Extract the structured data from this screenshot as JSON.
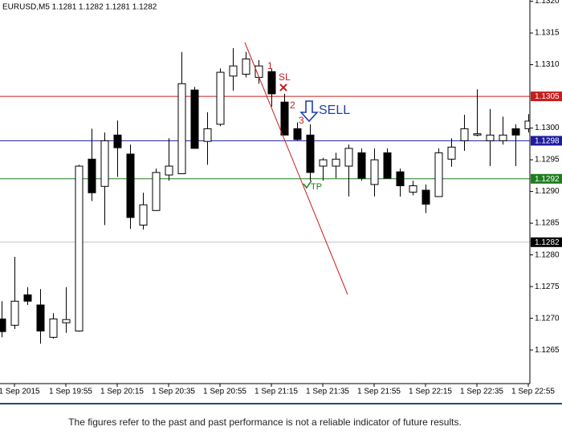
{
  "chart_data": {
    "type": "candlestick",
    "title": "EURUSD,M5  1.1281 1.1282 1.1281 1.1282",
    "categories": [
      null,
      "1 Sep 2015",
      null,
      null,
      null,
      "1 Sep 19:55",
      null,
      null,
      null,
      "1 Sep 20:15",
      null,
      null,
      null,
      "1 Sep 20:35",
      null,
      null,
      null,
      "1 Sep 20:55",
      null,
      null,
      null,
      "1 Sep 21:15",
      null,
      null,
      null,
      "1 Sep 21:35",
      null,
      null,
      null,
      "1 Sep 21:55",
      null,
      null,
      null,
      "1 Sep 22:15",
      null,
      null,
      null,
      "1 Sep 22:35",
      null,
      null,
      null,
      "1 Sep 22:55"
    ],
    "open": [
      1.12699,
      1.12689,
      1.12737,
      1.12721,
      1.1267,
      1.12693,
      1.1268,
      1.12951,
      1.12908,
      1.12989,
      1.12959,
      1.12847,
      1.1287,
      1.12926,
      1.12928,
      1.1306,
      1.12979,
      1.13006,
      1.13082,
      1.13085,
      1.1308,
      1.13089,
      1.13041,
      1.12999,
      1.12989,
      1.1294,
      1.1294,
      1.1294,
      1.12961,
      1.12911,
      1.12961,
      1.12931,
      1.12899,
      1.12902,
      1.12892,
      1.12951,
      1.1298,
      1.12989,
      1.1298,
      1.1298,
      1.12999,
      1.12999
    ],
    "high": [
      1.12727,
      1.12797,
      1.12749,
      1.12746,
      1.12708,
      1.12749,
      1.12942,
      1.12999,
      1.12993,
      1.13012,
      1.12974,
      1.12898,
      1.12936,
      1.12984,
      1.1312,
      1.13065,
      1.13025,
      1.13094,
      1.13126,
      1.1312,
      1.13107,
      1.13094,
      1.13054,
      1.13009,
      1.13006,
      1.12953,
      1.12961,
      1.12974,
      1.12968,
      1.12968,
      1.12968,
      1.12936,
      1.12917,
      1.12911,
      1.12968,
      1.12984,
      1.13021,
      1.13061,
      1.1303,
      1.13018,
      1.13006,
      1.13022
    ],
    "low": [
      1.1267,
      1.12683,
      1.12721,
      1.1266,
      1.12668,
      1.12677,
      1.12679,
      1.12885,
      1.12847,
      1.12923,
      1.12841,
      1.1284,
      1.1287,
      1.12917,
      1.12928,
      1.12968,
      1.12942,
      1.13003,
      1.13059,
      1.1308,
      1.1307,
      1.13034,
      1.12989,
      1.1298,
      1.12917,
      1.12917,
      1.12921,
      1.12892,
      1.12917,
      1.12892,
      1.12921,
      1.12892,
      1.12894,
      1.12866,
      1.12892,
      1.12939,
      1.12964,
      1.12987,
      1.1294,
      1.12974,
      1.1294,
      1.12993
    ],
    "close": [
      1.12679,
      1.12727,
      1.12727,
      1.1268,
      1.12699,
      1.12698,
      1.1294,
      1.12898,
      1.1298,
      1.12969,
      1.12859,
      1.12879,
      1.1293,
      1.1294,
      1.1307,
      1.12968,
      1.12999,
      1.13088,
      1.13098,
      1.13109,
      1.13098,
      1.13054,
      1.12989,
      1.12982,
      1.1293,
      1.1295,
      1.12951,
      1.12968,
      1.12921,
      1.1295,
      1.12921,
      1.12909,
      1.12909,
      1.1288,
      1.12961,
      1.1297,
      1.12999,
      1.12991,
      1.12989,
      1.12989,
      1.12989,
      1.13011
    ],
    "up_color": "#ffffff",
    "down_color": "#000000",
    "ylim": [
      1.12597,
      1.13202
    ],
    "yticks": [
      {
        "value": 1.132,
        "label": "1.1320"
      },
      1.1315,
      {
        "value": 1.131,
        "label": "1.1310"
      },
      {
        "value": 1.13,
        "label": "1.1300"
      },
      1.1295,
      {
        "value": 1.129,
        "label": "1.1290"
      },
      1.1285,
      {
        "value": 1.128,
        "label": "1.1280"
      },
      1.1275,
      {
        "value": 1.127,
        "label": "1.1270"
      },
      1.1265
    ],
    "levels": [
      {
        "value": 1.1305,
        "color": "#c81e1e"
      },
      {
        "value": 1.1298,
        "color": "#1c1ca0"
      },
      {
        "value": 1.1292,
        "color": "#1e7d1e"
      },
      {
        "value": 1.1282,
        "color": "#000000"
      }
    ],
    "annotations": {
      "steps": [
        "1",
        "2",
        "3"
      ],
      "stop_loss": "SL",
      "signal": "SELL",
      "take_profit": "TP"
    }
  },
  "footer": {
    "disclaimer": "The figures refer to the past and past performance is not a reliable indicator of future results."
  }
}
